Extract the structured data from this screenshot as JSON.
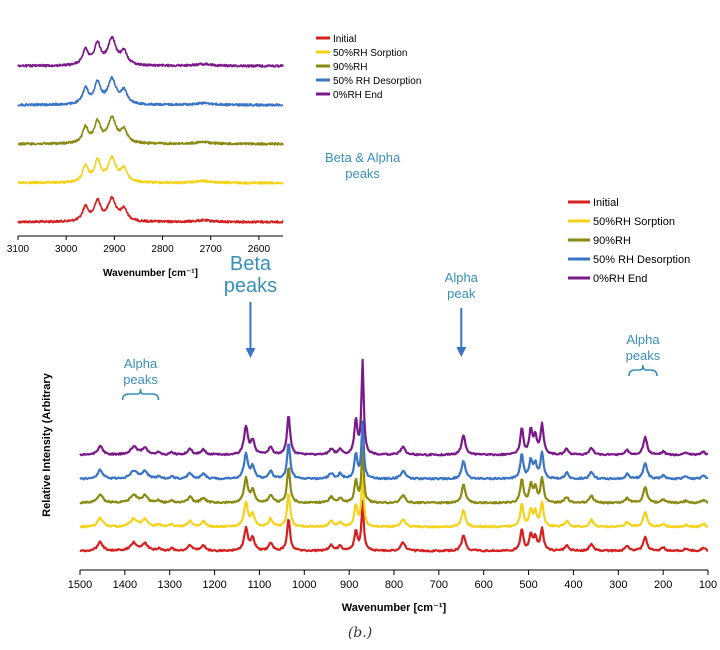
{
  "caption": "(b.)",
  "chart_data": [
    {
      "type": "line",
      "title": "",
      "xlabel": "Wavenumber [cm⁻¹]",
      "ylabel": "",
      "xlim": [
        3100,
        2550
      ],
      "xticks": [
        3100,
        3000,
        2900,
        2800,
        2700,
        2600
      ],
      "y_axis_visible": false,
      "offset_stacked": true,
      "legend_position": "right",
      "series": [
        {
          "name": "Initial",
          "color": "#d62020",
          "peaks": [
            [
              2960,
              0.55,
              7
            ],
            [
              2935,
              0.75,
              8
            ],
            [
              2905,
              0.85,
              10
            ],
            [
              2880,
              0.45,
              8
            ],
            [
              2715,
              0.06,
              20
            ]
          ]
        },
        {
          "name": "50%RH Sorption",
          "color": "#f5d21a",
          "peaks": [
            [
              2960,
              0.6,
              7
            ],
            [
              2935,
              0.8,
              8
            ],
            [
              2905,
              0.9,
              10
            ],
            [
              2880,
              0.5,
              8
            ],
            [
              2715,
              0.07,
              20
            ]
          ]
        },
        {
          "name": "90%RH",
          "color": "#8a8a12",
          "peaks": [
            [
              2960,
              0.6,
              7
            ],
            [
              2935,
              0.8,
              8
            ],
            [
              2905,
              0.95,
              10
            ],
            [
              2880,
              0.5,
              8
            ],
            [
              2715,
              0.07,
              20
            ]
          ]
        },
        {
          "name": "50% RH Desorption",
          "color": "#3a74c4",
          "peaks": [
            [
              2960,
              0.6,
              7
            ],
            [
              2935,
              0.8,
              8
            ],
            [
              2905,
              0.95,
              10
            ],
            [
              2880,
              0.5,
              8
            ],
            [
              2715,
              0.07,
              20
            ]
          ]
        },
        {
          "name": "0%RH End",
          "color": "#7a1a8a",
          "peaks": [
            [
              2960,
              0.6,
              7
            ],
            [
              2935,
              0.8,
              8
            ],
            [
              2905,
              1.0,
              10
            ],
            [
              2880,
              0.5,
              8
            ],
            [
              2715,
              0.07,
              20
            ]
          ]
        }
      ]
    },
    {
      "type": "line",
      "title": "",
      "xlabel": "Wavenumber [cm⁻¹]",
      "ylabel": "Relative Intensity (Arbitrary",
      "xlim": [
        1500,
        100
      ],
      "xticks": [
        1500,
        1400,
        1300,
        1200,
        1100,
        1000,
        900,
        800,
        700,
        600,
        500,
        400,
        300,
        200,
        100
      ],
      "y_axis_visible": false,
      "offset_stacked": true,
      "legend_position": "right",
      "series": [
        {
          "name": "Initial",
          "color": "#d62020",
          "peaks": [
            [
              1455,
              0.22,
              7
            ],
            [
              1380,
              0.2,
              9
            ],
            [
              1355,
              0.18,
              7
            ],
            [
              1325,
              0.06,
              5
            ],
            [
              1295,
              0.06,
              5
            ],
            [
              1255,
              0.15,
              6
            ],
            [
              1225,
              0.13,
              6
            ],
            [
              1130,
              0.55,
              5
            ],
            [
              1115,
              0.3,
              5
            ],
            [
              1075,
              0.2,
              5
            ],
            [
              1035,
              0.8,
              4
            ],
            [
              940,
              0.14,
              6
            ],
            [
              920,
              0.12,
              5
            ],
            [
              885,
              0.5,
              4
            ],
            [
              870,
              1.2,
              3
            ],
            [
              780,
              0.2,
              6
            ],
            [
              645,
              0.4,
              5
            ],
            [
              515,
              0.55,
              4
            ],
            [
              495,
              0.4,
              4
            ],
            [
              485,
              0.32,
              4
            ],
            [
              470,
              0.55,
              4
            ],
            [
              415,
              0.15,
              5
            ],
            [
              360,
              0.18,
              5
            ],
            [
              280,
              0.12,
              5
            ],
            [
              240,
              0.35,
              5
            ],
            [
              200,
              0.08,
              5
            ],
            [
              150,
              0.05,
              6
            ],
            [
              110,
              0.08,
              5
            ]
          ]
        },
        {
          "name": "50%RH Sorption",
          "color": "#f5d21a",
          "peaks": [
            [
              1455,
              0.22,
              7
            ],
            [
              1380,
              0.2,
              9
            ],
            [
              1355,
              0.18,
              7
            ],
            [
              1325,
              0.06,
              5
            ],
            [
              1295,
              0.06,
              5
            ],
            [
              1255,
              0.15,
              6
            ],
            [
              1225,
              0.13,
              6
            ],
            [
              1130,
              0.6,
              5
            ],
            [
              1115,
              0.3,
              5
            ],
            [
              1075,
              0.2,
              5
            ],
            [
              1035,
              0.85,
              4
            ],
            [
              940,
              0.14,
              6
            ],
            [
              920,
              0.12,
              5
            ],
            [
              885,
              0.55,
              4
            ],
            [
              870,
              1.3,
              3
            ],
            [
              780,
              0.2,
              6
            ],
            [
              645,
              0.42,
              5
            ],
            [
              515,
              0.58,
              4
            ],
            [
              495,
              0.42,
              4
            ],
            [
              485,
              0.35,
              4
            ],
            [
              470,
              0.6,
              4
            ],
            [
              415,
              0.15,
              5
            ],
            [
              360,
              0.18,
              5
            ],
            [
              280,
              0.12,
              5
            ],
            [
              240,
              0.38,
              5
            ],
            [
              200,
              0.08,
              5
            ],
            [
              150,
              0.05,
              6
            ],
            [
              110,
              0.08,
              5
            ]
          ]
        },
        {
          "name": "90%RH",
          "color": "#8a8a12",
          "peaks": [
            [
              1455,
              0.22,
              7
            ],
            [
              1380,
              0.2,
              9
            ],
            [
              1355,
              0.18,
              7
            ],
            [
              1325,
              0.06,
              5
            ],
            [
              1295,
              0.06,
              5
            ],
            [
              1255,
              0.15,
              6
            ],
            [
              1225,
              0.13,
              6
            ],
            [
              1130,
              0.6,
              5
            ],
            [
              1115,
              0.3,
              5
            ],
            [
              1075,
              0.2,
              5
            ],
            [
              1035,
              0.9,
              4
            ],
            [
              940,
              0.14,
              6
            ],
            [
              920,
              0.12,
              5
            ],
            [
              885,
              0.55,
              4
            ],
            [
              870,
              1.35,
              3
            ],
            [
              780,
              0.2,
              6
            ],
            [
              645,
              0.45,
              5
            ],
            [
              515,
              0.6,
              4
            ],
            [
              495,
              0.45,
              4
            ],
            [
              485,
              0.36,
              4
            ],
            [
              470,
              0.62,
              4
            ],
            [
              415,
              0.15,
              5
            ],
            [
              360,
              0.18,
              5
            ],
            [
              280,
              0.12,
              5
            ],
            [
              240,
              0.4,
              5
            ],
            [
              200,
              0.08,
              5
            ],
            [
              150,
              0.05,
              6
            ],
            [
              110,
              0.08,
              5
            ]
          ]
        },
        {
          "name": "50% RH Desorption",
          "color": "#3a74c4",
          "peaks": [
            [
              1455,
              0.22,
              7
            ],
            [
              1380,
              0.2,
              9
            ],
            [
              1355,
              0.18,
              7
            ],
            [
              1325,
              0.06,
              5
            ],
            [
              1295,
              0.06,
              5
            ],
            [
              1255,
              0.15,
              6
            ],
            [
              1225,
              0.13,
              6
            ],
            [
              1130,
              0.62,
              5
            ],
            [
              1115,
              0.3,
              5
            ],
            [
              1075,
              0.2,
              5
            ],
            [
              1035,
              0.92,
              4
            ],
            [
              940,
              0.14,
              6
            ],
            [
              920,
              0.12,
              5
            ],
            [
              885,
              0.6,
              4
            ],
            [
              870,
              1.4,
              3
            ],
            [
              780,
              0.2,
              6
            ],
            [
              645,
              0.45,
              5
            ],
            [
              515,
              0.62,
              4
            ],
            [
              495,
              0.45,
              4
            ],
            [
              485,
              0.36,
              4
            ],
            [
              470,
              0.65,
              4
            ],
            [
              415,
              0.15,
              5
            ],
            [
              360,
              0.18,
              5
            ],
            [
              280,
              0.12,
              5
            ],
            [
              240,
              0.4,
              5
            ],
            [
              200,
              0.08,
              5
            ],
            [
              150,
              0.05,
              6
            ],
            [
              110,
              0.08,
              5
            ]
          ]
        },
        {
          "name": "0%RH End",
          "color": "#7a1a8a",
          "peaks": [
            [
              1455,
              0.22,
              7
            ],
            [
              1380,
              0.2,
              9
            ],
            [
              1355,
              0.18,
              7
            ],
            [
              1325,
              0.06,
              5
            ],
            [
              1295,
              0.06,
              5
            ],
            [
              1255,
              0.15,
              6
            ],
            [
              1225,
              0.13,
              6
            ],
            [
              1130,
              0.7,
              5
            ],
            [
              1115,
              0.35,
              5
            ],
            [
              1075,
              0.2,
              5
            ],
            [
              1035,
              1.0,
              4
            ],
            [
              940,
              0.14,
              6
            ],
            [
              920,
              0.12,
              5
            ],
            [
              885,
              0.85,
              4
            ],
            [
              870,
              2.3,
              3
            ],
            [
              780,
              0.2,
              6
            ],
            [
              645,
              0.5,
              5
            ],
            [
              515,
              0.65,
              4
            ],
            [
              495,
              0.6,
              4
            ],
            [
              485,
              0.45,
              4
            ],
            [
              470,
              0.75,
              4
            ],
            [
              415,
              0.15,
              5
            ],
            [
              360,
              0.18,
              5
            ],
            [
              280,
              0.12,
              5
            ],
            [
              240,
              0.45,
              5
            ],
            [
              200,
              0.08,
              5
            ],
            [
              150,
              0.05,
              6
            ],
            [
              110,
              0.08,
              5
            ]
          ]
        }
      ],
      "annotations": [
        {
          "id": "beta-alpha",
          "lines": [
            "Beta & Alpha",
            "peaks"
          ],
          "x": 870,
          "style": "text"
        },
        {
          "id": "beta",
          "lines": [
            "Beta",
            "peaks"
          ],
          "x": 1120,
          "style": "arrow"
        },
        {
          "id": "alpha-peak",
          "lines": [
            "Alpha",
            "peak"
          ],
          "x": 650,
          "style": "arrow"
        },
        {
          "id": "alpha-left",
          "lines": [
            "Alpha",
            "peaks"
          ],
          "x": 1365,
          "style": "brace"
        },
        {
          "id": "alpha-right",
          "lines": [
            "Alpha",
            "peaks"
          ],
          "x": 245,
          "style": "brace"
        }
      ]
    }
  ]
}
